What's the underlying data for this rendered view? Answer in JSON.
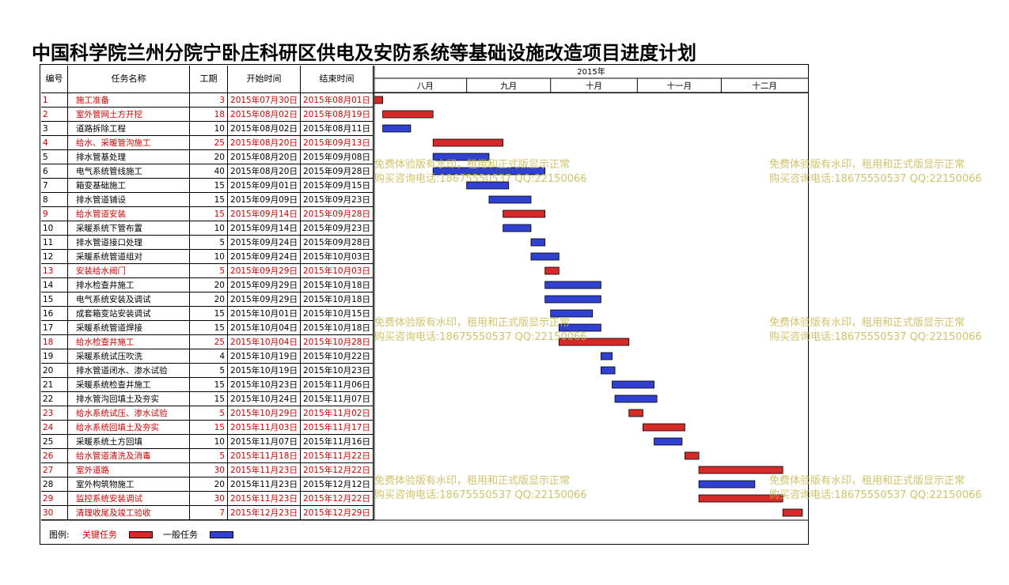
{
  "title": "中国科学院兰州分院宁卧庄科研区供电及安防系统等基础设施改造项目进度计划",
  "headers": {
    "no": "编号",
    "name": "任务名称",
    "duration": "工期",
    "start": "开始时间",
    "end": "结束时间"
  },
  "year_label": "2015年",
  "months": [
    "八月",
    "九月",
    "十月",
    "十一月",
    "十二月"
  ],
  "legend": {
    "label": "图例:",
    "critical": "关键任务",
    "normal": "一般任务"
  },
  "colors": {
    "critical_text": "#d40000",
    "critical_bar": "#d42a2a",
    "normal_bar": "#3040d0",
    "watermark": "#c9b84c"
  },
  "watermarks": [
    {
      "line1": "免费体验版有水印，租用和正式版显示正常",
      "line2": "购买咨询电话:18675550537 QQ:22150066"
    }
  ],
  "chart_data": {
    "type": "gantt",
    "title": "中国科学院兰州分院宁卧庄科研区供电及安防系统等基础设施改造项目进度计划",
    "year": "2015年",
    "timeline_start": "2015-07-30",
    "timeline_end": "2015-12-31",
    "months": [
      "八月",
      "九月",
      "十月",
      "十一月",
      "十二月"
    ],
    "legend": [
      "关键任务",
      "一般任务"
    ],
    "tasks": [
      {
        "no": "1",
        "name": "施工准备",
        "duration": "3",
        "start": "2015年07月30日",
        "end": "2015年08月01日",
        "s": "2015-07-30",
        "e": "2015-08-01",
        "critical": true
      },
      {
        "no": "2",
        "name": "室外管网土方开挖",
        "duration": "18",
        "start": "2015年08月02日",
        "end": "2015年08月19日",
        "s": "2015-08-02",
        "e": "2015-08-19",
        "critical": true
      },
      {
        "no": "3",
        "name": "道路拆除工程",
        "duration": "10",
        "start": "2015年08月02日",
        "end": "2015年08月11日",
        "s": "2015-08-02",
        "e": "2015-08-11",
        "critical": false
      },
      {
        "no": "4",
        "name": "给水、采暖管沟施工",
        "duration": "25",
        "start": "2015年08月20日",
        "end": "2015年09月13日",
        "s": "2015-08-20",
        "e": "2015-09-13",
        "critical": true
      },
      {
        "no": "5",
        "name": "排水管基处理",
        "duration": "20",
        "start": "2015年08月20日",
        "end": "2015年09月08日",
        "s": "2015-08-20",
        "e": "2015-09-08",
        "critical": false
      },
      {
        "no": "6",
        "name": "电气系统管线施工",
        "duration": "40",
        "start": "2015年08月20日",
        "end": "2015年09月28日",
        "s": "2015-08-20",
        "e": "2015-09-28",
        "critical": false
      },
      {
        "no": "7",
        "name": "箱变基础施工",
        "duration": "15",
        "start": "2015年09月01日",
        "end": "2015年09月15日",
        "s": "2015-09-01",
        "e": "2015-09-15",
        "critical": false
      },
      {
        "no": "8",
        "name": "排水管道铺设",
        "duration": "15",
        "start": "2015年09月09日",
        "end": "2015年09月23日",
        "s": "2015-09-09",
        "e": "2015-09-23",
        "critical": false
      },
      {
        "no": "9",
        "name": "给水管道安装",
        "duration": "15",
        "start": "2015年09月14日",
        "end": "2015年09月28日",
        "s": "2015-09-14",
        "e": "2015-09-28",
        "critical": true
      },
      {
        "no": "10",
        "name": "采暖系统下管布置",
        "duration": "10",
        "start": "2015年09月14日",
        "end": "2015年09月23日",
        "s": "2015-09-14",
        "e": "2015-09-23",
        "critical": false
      },
      {
        "no": "11",
        "name": "排水管道接口处理",
        "duration": "5",
        "start": "2015年09月24日",
        "end": "2015年09月28日",
        "s": "2015-09-24",
        "e": "2015-09-28",
        "critical": false
      },
      {
        "no": "12",
        "name": "采暖系统管道组对",
        "duration": "10",
        "start": "2015年09月24日",
        "end": "2015年10月03日",
        "s": "2015-09-24",
        "e": "2015-10-03",
        "critical": false
      },
      {
        "no": "13",
        "name": "安装给水阀门",
        "duration": "5",
        "start": "2015年09月29日",
        "end": "2015年10月03日",
        "s": "2015-09-29",
        "e": "2015-10-03",
        "critical": true
      },
      {
        "no": "14",
        "name": "排水检查井施工",
        "duration": "20",
        "start": "2015年09月29日",
        "end": "2015年10月18日",
        "s": "2015-09-29",
        "e": "2015-10-18",
        "critical": false
      },
      {
        "no": "15",
        "name": "电气系统安装及调试",
        "duration": "20",
        "start": "2015年09月29日",
        "end": "2015年10月18日",
        "s": "2015-09-29",
        "e": "2015-10-18",
        "critical": false
      },
      {
        "no": "16",
        "name": "成套箱变站安装调试",
        "duration": "15",
        "start": "2015年10月01日",
        "end": "2015年10月15日",
        "s": "2015-10-01",
        "e": "2015-10-15",
        "critical": false
      },
      {
        "no": "17",
        "name": "采暖系统管道焊接",
        "duration": "15",
        "start": "2015年10月04日",
        "end": "2015年10月18日",
        "s": "2015-10-04",
        "e": "2015-10-18",
        "critical": false
      },
      {
        "no": "18",
        "name": "给水检查井施工",
        "duration": "25",
        "start": "2015年10月04日",
        "end": "2015年10月28日",
        "s": "2015-10-04",
        "e": "2015-10-28",
        "critical": true
      },
      {
        "no": "19",
        "name": "采暖系统试压吹洗",
        "duration": "4",
        "start": "2015年10月19日",
        "end": "2015年10月22日",
        "s": "2015-10-19",
        "e": "2015-10-22",
        "critical": false
      },
      {
        "no": "20",
        "name": "排水管道闭水、渗水试验",
        "duration": "5",
        "start": "2015年10月19日",
        "end": "2015年10月23日",
        "s": "2015-10-19",
        "e": "2015-10-23",
        "critical": false
      },
      {
        "no": "21",
        "name": "采暖系统检查井施工",
        "duration": "15",
        "start": "2015年10月23日",
        "end": "2015年11月06日",
        "s": "2015-10-23",
        "e": "2015-11-06",
        "critical": false
      },
      {
        "no": "22",
        "name": "排水管沟回填土及夯实",
        "duration": "15",
        "start": "2015年10月24日",
        "end": "2015年11月07日",
        "s": "2015-10-24",
        "e": "2015-11-07",
        "critical": false
      },
      {
        "no": "23",
        "name": "给水系统试压、渗水试验",
        "duration": "5",
        "start": "2015年10月29日",
        "end": "2015年11月02日",
        "s": "2015-10-29",
        "e": "2015-11-02",
        "critical": true
      },
      {
        "no": "24",
        "name": "给水系统回填土及夯实",
        "duration": "15",
        "start": "2015年11月03日",
        "end": "2015年11月17日",
        "s": "2015-11-03",
        "e": "2015-11-17",
        "critical": true
      },
      {
        "no": "25",
        "name": "采暖系统土方回填",
        "duration": "10",
        "start": "2015年11月07日",
        "end": "2015年11月16日",
        "s": "2015-11-07",
        "e": "2015-11-16",
        "critical": false
      },
      {
        "no": "26",
        "name": "给水管道清洗及消毒",
        "duration": "5",
        "start": "2015年11月18日",
        "end": "2015年11月22日",
        "s": "2015-11-18",
        "e": "2015-11-22",
        "critical": true
      },
      {
        "no": "27",
        "name": "室外道路",
        "duration": "30",
        "start": "2015年11月23日",
        "end": "2015年12月22日",
        "s": "2015-11-23",
        "e": "2015-12-22",
        "critical": true
      },
      {
        "no": "28",
        "name": "室外构筑物施工",
        "duration": "20",
        "start": "2015年11月23日",
        "end": "2015年12月12日",
        "s": "2015-11-23",
        "e": "2015-12-12",
        "critical": false
      },
      {
        "no": "29",
        "name": "监控系统安装调试",
        "duration": "30",
        "start": "2015年11月23日",
        "end": "2015年12月22日",
        "s": "2015-11-23",
        "e": "2015-12-22",
        "critical": true
      },
      {
        "no": "30",
        "name": "清理收尾及竣工验收",
        "duration": "7",
        "start": "2015年12月23日",
        "end": "2015年12月29日",
        "s": "2015-12-23",
        "e": "2015-12-29",
        "critical": true
      }
    ]
  }
}
